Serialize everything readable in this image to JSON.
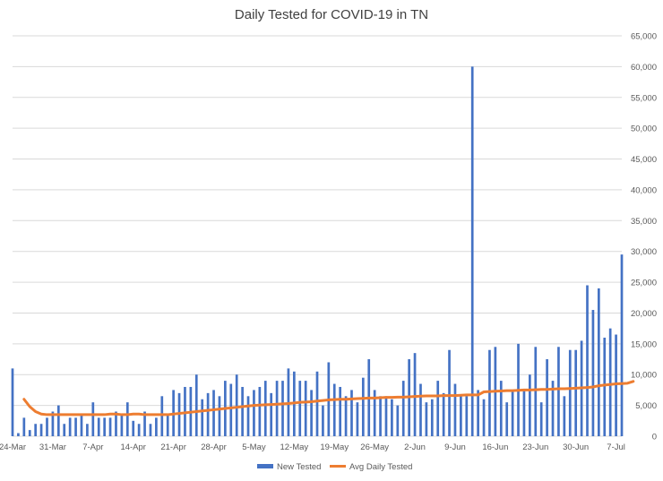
{
  "chart_data": {
    "type": "bar+line",
    "title": "Daily Tested for COVID-19 in TN",
    "xlabel": "",
    "ylabel": "",
    "ylim": [
      0,
      65000
    ],
    "y_axis_side": "right",
    "grid": true,
    "legend": "bottom-center",
    "x_tick_labels": [
      "24-Mar",
      "31-Mar",
      "7-Apr",
      "14-Apr",
      "21-Apr",
      "28-Apr",
      "5-May",
      "12-May",
      "19-May",
      "26-May",
      "2-Jun",
      "9-Jun",
      "16-Jun",
      "23-Jun",
      "30-Jun",
      "7-Jul"
    ],
    "y_tick_labels": [
      "0",
      "5,000",
      "10,000",
      "15,000",
      "20,000",
      "25,000",
      "30,000",
      "35,000",
      "40,000",
      "45,000",
      "50,000",
      "55,000",
      "60,000",
      "65,000"
    ],
    "x_start": "24-Mar",
    "x_end": "7-Jul",
    "series": [
      {
        "name": "New Tested",
        "type": "bar",
        "color": "#4472C4",
        "values": [
          11000,
          500,
          3000,
          1000,
          2000,
          2000,
          3000,
          4000,
          5000,
          2000,
          3000,
          3000,
          3500,
          2000,
          5500,
          3000,
          3000,
          3000,
          4000,
          3500,
          5500,
          2500,
          2000,
          4000,
          2000,
          3000,
          6500,
          3500,
          7500,
          7000,
          8000,
          8000,
          10000,
          6000,
          7000,
          7500,
          6500,
          9000,
          8500,
          10000,
          8000,
          6500,
          7500,
          8000,
          9000,
          7000,
          9000,
          9000,
          11000,
          10500,
          9000,
          9000,
          7500,
          10500,
          5000,
          12000,
          8500,
          8000,
          6500,
          7500,
          5500,
          9500,
          12500,
          7500,
          6500,
          6500,
          6000,
          5000,
          9000,
          12500,
          13500,
          8500,
          5500,
          6000,
          9000,
          7000,
          14000,
          8500,
          6500,
          6500,
          60000,
          7500,
          6000,
          14000,
          14500,
          9000,
          5500,
          7500,
          15000,
          7500,
          10000,
          14500,
          5500,
          12500,
          9000,
          14500,
          6500,
          14000,
          14000,
          15500,
          24500,
          20500,
          24000,
          16000,
          17500,
          16500,
          29500
        ]
      },
      {
        "name": "Avg Daily Tested",
        "type": "line",
        "color": "#ED7D31",
        "values": [
          6000,
          4800,
          4000,
          3600,
          3500,
          3500,
          3500,
          3500,
          3500,
          3500,
          3500,
          3500,
          3500,
          3500,
          3500,
          3600,
          3600,
          3500,
          3500,
          3600,
          3600,
          3500,
          3500,
          3500,
          3500,
          3500,
          3600,
          3700,
          3800,
          3900,
          4000,
          4100,
          4200,
          4300,
          4400,
          4500,
          4600,
          4700,
          4800,
          4900,
          5000,
          5050,
          5100,
          5150,
          5200,
          5250,
          5300,
          5400,
          5500,
          5550,
          5600,
          5700,
          5800,
          5900,
          5950,
          6000,
          6000,
          6050,
          6100,
          6150,
          6200,
          6200,
          6250,
          6300,
          6300,
          6350,
          6350,
          6400,
          6450,
          6500,
          6550,
          6550,
          6550,
          6600,
          6600,
          6600,
          6650,
          6700,
          6700,
          6700,
          7200,
          7250,
          7300,
          7350,
          7400,
          7400,
          7450,
          7500,
          7500,
          7550,
          7600,
          7600,
          7650,
          7700,
          7700,
          7750,
          7800,
          7850,
          7900,
          8000,
          8200,
          8300,
          8400,
          8500,
          8550,
          8600,
          8900
        ]
      }
    ]
  }
}
